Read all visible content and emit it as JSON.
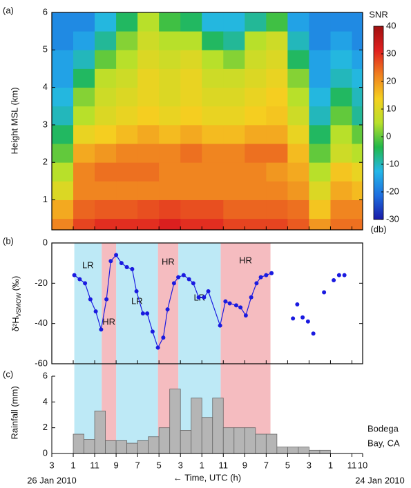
{
  "chart_data": [
    {
      "type": "heatmap",
      "panel_label": "(a)",
      "ylabel": "Height MSL (km)",
      "xlim": [
        0,
        29
      ],
      "ylim": [
        0.2,
        6
      ],
      "yticks": [
        1,
        2,
        3,
        4,
        5,
        6
      ],
      "x_edges": [
        0,
        2,
        4,
        6,
        8,
        10,
        12,
        14,
        16,
        18,
        20,
        22,
        24,
        26,
        28,
        29
      ],
      "y_edges": [
        0.2,
        0.5,
        1,
        1.5,
        2,
        2.5,
        3,
        3.5,
        4,
        4.5,
        5,
        5.5,
        6
      ],
      "z": [
        [
          22,
          28,
          30,
          30,
          30,
          32,
          30,
          30,
          28,
          28,
          28,
          26,
          20,
          24,
          24
        ],
        [
          18,
          25,
          26,
          26,
          27,
          28,
          27,
          27,
          25,
          25,
          25,
          24,
          15,
          22,
          22
        ],
        [
          10,
          22,
          22,
          22,
          22,
          22,
          22,
          22,
          22,
          22,
          22,
          20,
          10,
          18,
          16
        ],
        [
          5,
          22,
          24,
          24,
          24,
          22,
          22,
          22,
          22,
          22,
          20,
          18,
          5,
          15,
          12
        ],
        [
          0,
          18,
          20,
          22,
          22,
          22,
          24,
          22,
          22,
          24,
          24,
          16,
          0,
          8,
          5
        ],
        [
          -5,
          12,
          14,
          16,
          18,
          16,
          18,
          16,
          16,
          18,
          18,
          12,
          -5,
          5,
          0
        ],
        [
          -10,
          5,
          10,
          12,
          14,
          12,
          14,
          12,
          12,
          14,
          15,
          8,
          -10,
          0,
          -8
        ],
        [
          -12,
          2,
          8,
          10,
          12,
          10,
          12,
          10,
          10,
          12,
          14,
          5,
          -12,
          -5,
          -10
        ],
        [
          -15,
          -5,
          6,
          8,
          12,
          10,
          12,
          8,
          8,
          10,
          12,
          2,
          -15,
          -10,
          -12
        ],
        [
          -15,
          -10,
          0,
          5,
          10,
          8,
          10,
          5,
          2,
          8,
          10,
          -5,
          -15,
          -12,
          -15
        ],
        [
          -18,
          -15,
          -8,
          2,
          8,
          5,
          5,
          -5,
          -8,
          5,
          8,
          -10,
          -18,
          -15,
          -18
        ],
        [
          -18,
          -18,
          -12,
          -5,
          5,
          -2,
          -5,
          -12,
          -12,
          -8,
          -2,
          -15,
          -18,
          -18,
          -18
        ]
      ],
      "colorbar": {
        "title": "SNR",
        "unit_label": "(db)",
        "clim": [
          -30,
          40
        ],
        "ticks": [
          -30,
          -20,
          -10,
          0,
          10,
          20,
          30,
          40
        ],
        "colors": [
          "#1a1aa8",
          "#1e6fe0",
          "#24b7e8",
          "#22b84a",
          "#b8e02a",
          "#f5d020",
          "#f08020",
          "#e02020",
          "#a01010"
        ]
      }
    },
    {
      "type": "line",
      "panel_label": "(b)",
      "ylabel": "δ²H",
      "ylabel_subscript": "VSMOW",
      "ylabel_unit": "(‰)",
      "xlim": [
        0,
        29
      ],
      "ylim": [
        -60,
        0
      ],
      "yticks": [
        -60,
        -40,
        -20,
        0
      ],
      "regions": [
        {
          "start": 2.1,
          "end": 4.65,
          "label": "LR",
          "color": "#bde9f6"
        },
        {
          "start": 4.65,
          "end": 6.0,
          "label": "HR",
          "color": "#f5bcc0"
        },
        {
          "start": 6.0,
          "end": 9.9,
          "label": "LR",
          "color": "#bde9f6"
        },
        {
          "start": 9.9,
          "end": 11.8,
          "label": "HR",
          "color": "#f5bcc0"
        },
        {
          "start": 11.8,
          "end": 15.75,
          "label": "LR",
          "color": "#bde9f6"
        },
        {
          "start": 15.75,
          "end": 20.4,
          "label": "HR",
          "color": "#f5bcc0"
        }
      ],
      "series": [
        {
          "color": "#1a1ae0",
          "line": true,
          "x": [
            2.1,
            2.6,
            3.1,
            3.6,
            4.1,
            4.6,
            5.1,
            5.5,
            6.0,
            6.5,
            7.0,
            7.5,
            7.9,
            8.5,
            8.9,
            9.4,
            9.9,
            10.4,
            10.8,
            11.4,
            11.8,
            12.3,
            12.8,
            13.2,
            13.7,
            14.2,
            14.6,
            15.7,
            16.2,
            16.6,
            17.2,
            17.6,
            18.1,
            18.6,
            19.1,
            19.5,
            20.0,
            20.5
          ],
          "values": [
            -16,
            -18,
            -20,
            -28,
            -34,
            -43,
            -28,
            -9,
            -6,
            -10,
            -12,
            -13,
            -24,
            -35,
            -35,
            -44,
            -52,
            -47,
            -33,
            -20,
            -17,
            -16,
            -18,
            -20,
            -27,
            -27,
            -24,
            -41,
            -29,
            -30,
            -31,
            -32,
            -36,
            -27,
            -20,
            -17,
            -16,
            -15
          ]
        },
        {
          "color": "#1a1ae0",
          "line": false,
          "x": [
            22.5,
            22.9,
            23.4,
            23.9,
            24.4,
            25.4,
            26.3,
            26.8,
            27.3
          ],
          "values": [
            -37.5,
            -30.5,
            -37,
            -39,
            -45,
            -24.5,
            -18.5,
            -16,
            -16
          ]
        }
      ]
    },
    {
      "type": "histogram",
      "panel_label": "(c)",
      "ylabel": "Rainfall (mm)",
      "xlim": [
        0,
        29
      ],
      "ylim": [
        0,
        6
      ],
      "yticks": [
        0,
        2,
        4,
        6
      ],
      "color": "#b5b5b5",
      "bins": [
        2,
        3,
        4,
        5,
        6,
        7,
        8,
        9,
        10,
        11,
        12,
        13,
        14,
        15,
        16,
        17,
        18,
        19,
        20,
        21,
        22,
        23,
        24,
        25,
        26
      ],
      "values": [
        1.5,
        1.1,
        3.3,
        1.0,
        1.0,
        0.8,
        1.0,
        1.3,
        2.0,
        5.0,
        1.8,
        4.3,
        2.8,
        4.3,
        2.0,
        2.0,
        2.0,
        1.5,
        1.5,
        0.5,
        0.5,
        0.5,
        0.25,
        0.25
      ],
      "annotation": [
        "Bodega",
        "Bay, CA"
      ],
      "xlabel": "← Time, UTC (h)",
      "x_start_label": "26 Jan 2010",
      "x_end_label": "24 Jan 2010",
      "xticks": [
        {
          "value": 0,
          "label": "3"
        },
        {
          "value": 2,
          "label": "1"
        },
        {
          "value": 4,
          "label": "11"
        },
        {
          "value": 6,
          "label": "9"
        },
        {
          "value": 8,
          "label": "7"
        },
        {
          "value": 10,
          "label": "5"
        },
        {
          "value": 12,
          "label": "3"
        },
        {
          "value": 14,
          "label": "1"
        },
        {
          "value": 16,
          "label": "11"
        },
        {
          "value": 18,
          "label": "9"
        },
        {
          "value": 20,
          "label": "7"
        },
        {
          "value": 22,
          "label": "5"
        },
        {
          "value": 24,
          "label": "3"
        },
        {
          "value": 26,
          "label": "1"
        },
        {
          "value": 28,
          "label": "11"
        },
        {
          "value": 29,
          "label": "10"
        }
      ]
    }
  ]
}
